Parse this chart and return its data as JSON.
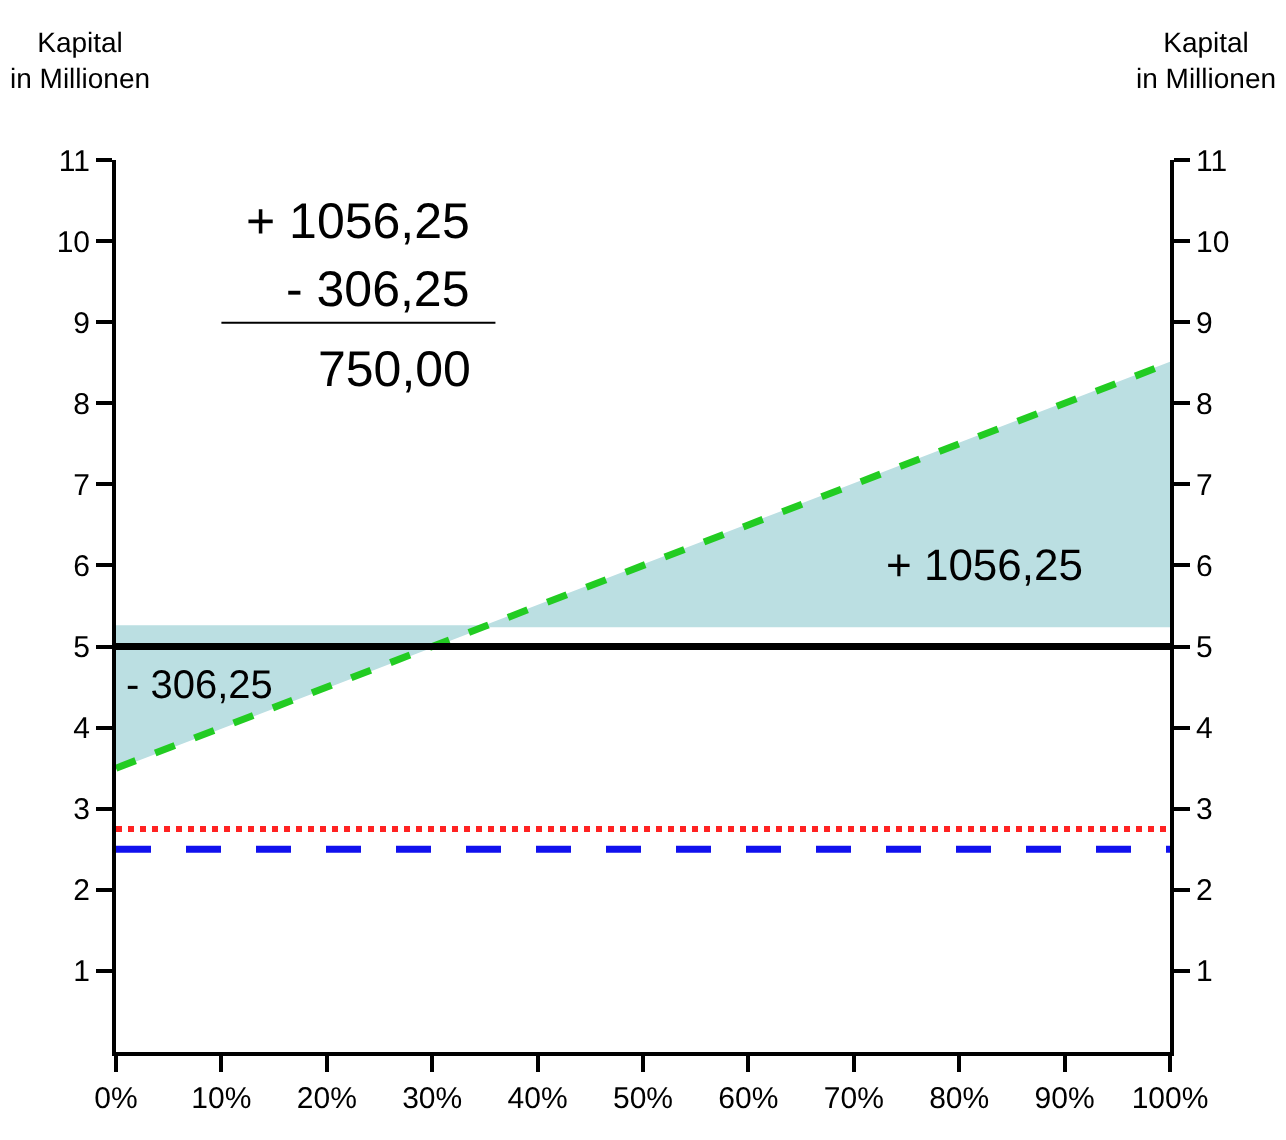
{
  "chart_data": {
    "type": "line",
    "ylabel": "Kapital\nin Millionen",
    "y2label": "Kapital\nin Millionen",
    "xlim": [
      0,
      100
    ],
    "xticks": [
      {
        "value": 0,
        "label": "0%"
      },
      {
        "value": 10,
        "label": "10%"
      },
      {
        "value": 20,
        "label": "20%"
      },
      {
        "value": 30,
        "label": "30%"
      },
      {
        "value": 40,
        "label": "40%"
      },
      {
        "value": 50,
        "label": "50%"
      },
      {
        "value": 60,
        "label": "60%"
      },
      {
        "value": 70,
        "label": "70%"
      },
      {
        "value": 80,
        "label": "80%"
      },
      {
        "value": 90,
        "label": "90%"
      },
      {
        "value": 100,
        "label": "100%"
      }
    ],
    "ylim": [
      0,
      11
    ],
    "yticks": [
      1,
      2,
      3,
      4,
      5,
      6,
      7,
      8,
      9,
      10,
      11
    ],
    "y2lim": [
      0,
      11
    ],
    "y2ticks": [
      1,
      2,
      3,
      4,
      5,
      6,
      7,
      8,
      9,
      10,
      11
    ],
    "series": [
      {
        "color": "#22cc22",
        "line_style": "dashed",
        "x": [
          0,
          35,
          100
        ],
        "values": [
          3.5,
          5.25,
          8.5
        ],
        "lower": [
          3.5,
          5.25,
          5.25
        ],
        "upper": [
          5.25,
          5.25,
          8.5
        ]
      }
    ],
    "ref_lines": [
      {
        "axis": "y",
        "value": 5,
        "color": "#000000",
        "line_style": "solid"
      },
      {
        "axis": "y",
        "value": 2.75,
        "color": "#ff2222",
        "line_style": "dotted"
      },
      {
        "axis": "y",
        "value": 2.5,
        "color": "#1111ee",
        "line_style": "dashed"
      }
    ],
    "annotations": [
      "+ 1056,25",
      "- 306,25",
      "750,00",
      "+ 1056,25",
      "- 306,25"
    ],
    "marker": "none"
  }
}
